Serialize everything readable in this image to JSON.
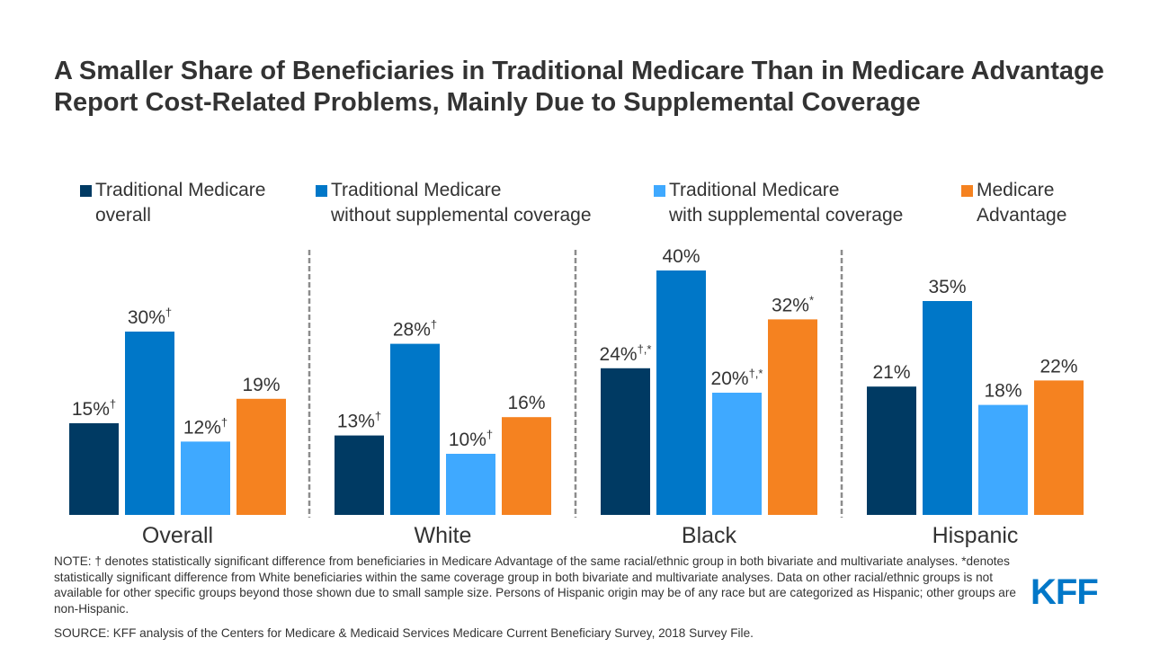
{
  "title": "A Smaller Share of Beneficiaries in Traditional Medicare Than in Medicare Advantage Report Cost-Related Problems, Mainly Due to Supplemental Coverage",
  "legend": [
    {
      "line1": "Traditional Medicare",
      "line2": "overall",
      "color": "#003a63"
    },
    {
      "line1": "Traditional Medicare",
      "line2": "without supplemental coverage",
      "color": "#0077c8"
    },
    {
      "line1": "Traditional Medicare",
      "line2": "with supplemental coverage",
      "color": "#3fa9ff"
    },
    {
      "line1": "Medicare",
      "line2": "Advantage",
      "color": "#f58220"
    }
  ],
  "chart_data": {
    "type": "bar",
    "title": "A Smaller Share of Beneficiaries in Traditional Medicare Than in Medicare Advantage Report Cost-Related Problems, Mainly Due to Supplemental Coverage",
    "xlabel": "",
    "ylabel": "",
    "ylim": [
      0,
      40
    ],
    "grid": false,
    "legend_position": "top",
    "categories": [
      "Overall",
      "White",
      "Black",
      "Hispanic"
    ],
    "series": [
      {
        "name": "Traditional Medicare overall",
        "color": "#003a63",
        "values": [
          15,
          13,
          24,
          21
        ],
        "labels": [
          "15%",
          "13%",
          "24%",
          "21%"
        ],
        "marks": [
          "†",
          "†",
          "†,*",
          ""
        ]
      },
      {
        "name": "Traditional Medicare without supplemental coverage",
        "color": "#0077c8",
        "values": [
          30,
          28,
          40,
          35
        ],
        "labels": [
          "30%",
          "28%",
          "40%",
          "35%"
        ],
        "marks": [
          "†",
          "†",
          "",
          ""
        ]
      },
      {
        "name": "Traditional Medicare with supplemental coverage",
        "color": "#3fa9ff",
        "values": [
          12,
          10,
          20,
          18
        ],
        "labels": [
          "12%",
          "10%",
          "20%",
          "18%"
        ],
        "marks": [
          "†",
          "†",
          "†,*",
          ""
        ]
      },
      {
        "name": "Medicare Advantage",
        "color": "#f58220",
        "values": [
          19,
          16,
          32,
          22
        ],
        "labels": [
          "19%",
          "16%",
          "32%",
          "22%"
        ],
        "marks": [
          "",
          "",
          "*",
          ""
        ]
      }
    ]
  },
  "footer": {
    "note": "NOTE: † denotes statistically significant difference from beneficiaries in Medicare Advantage of the same racial/ethnic group in both bivariate and multivariate analyses. *denotes statistically significant difference from White beneficiaries within the same coverage group in both bivariate and multivariate analyses. Data on other racial/ethnic groups is not available for other specific groups beyond those shown due to small sample size. Persons of Hispanic origin may be of any race but are categorized as Hispanic; other groups are non-Hispanic.",
    "source": "SOURCE: KFF analysis of the Centers for Medicare & Medicaid Services Medicare Current Beneficiary Survey, 2018 Survey File.",
    "logo": "KFF"
  }
}
